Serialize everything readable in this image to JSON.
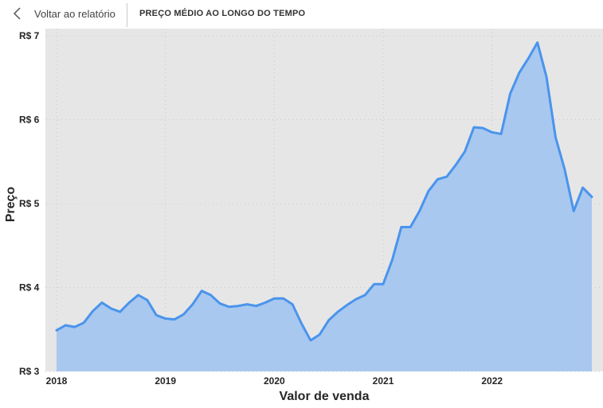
{
  "header": {
    "back_label": "Voltar ao relatório",
    "title": "PREÇO MÉDIO AO LONGO DO TEMPO"
  },
  "colors": {
    "plot_background": "#e6e6e6",
    "line": "#4a94ec",
    "area": "#a8c8f0",
    "grid": "#c9c9c9"
  },
  "chart_data": {
    "type": "area",
    "xlabel": "Valor de venda",
    "ylabel": "Preço",
    "ylim": [
      3,
      7
    ],
    "xlim": [
      "2018-01",
      "2022-12"
    ],
    "y_ticks": [
      {
        "value": 3,
        "label": "R$ 3"
      },
      {
        "value": 4,
        "label": "R$ 4"
      },
      {
        "value": 5,
        "label": "R$ 5"
      },
      {
        "value": 6,
        "label": "R$ 6"
      },
      {
        "value": 7,
        "label": "R$ 7"
      }
    ],
    "x_ticks": [
      {
        "value": "2018-01",
        "label": "2018"
      },
      {
        "value": "2019-01",
        "label": "2019"
      },
      {
        "value": "2020-01",
        "label": "2020"
      },
      {
        "value": "2021-01",
        "label": "2021"
      },
      {
        "value": "2022-01",
        "label": "2022"
      }
    ],
    "grid": true,
    "series": [
      {
        "x": [
          "2018-01",
          "2018-02",
          "2018-03",
          "2018-04",
          "2018-05",
          "2018-06",
          "2018-07",
          "2018-08",
          "2018-09",
          "2018-10",
          "2018-11",
          "2018-12",
          "2019-01",
          "2019-02",
          "2019-03",
          "2019-04",
          "2019-05",
          "2019-06",
          "2019-07",
          "2019-08",
          "2019-09",
          "2019-10",
          "2019-11",
          "2019-12",
          "2020-01",
          "2020-02",
          "2020-03",
          "2020-04",
          "2020-05",
          "2020-06",
          "2020-07",
          "2020-08",
          "2020-09",
          "2020-10",
          "2020-11",
          "2020-12",
          "2021-01",
          "2021-02",
          "2021-03",
          "2021-04",
          "2021-05",
          "2021-06",
          "2021-07",
          "2021-08",
          "2021-09",
          "2021-10",
          "2021-11",
          "2021-12",
          "2022-01",
          "2022-02",
          "2022-03",
          "2022-04",
          "2022-05",
          "2022-06",
          "2022-07",
          "2022-08",
          "2022-09",
          "2022-10",
          "2022-11",
          "2022-12"
        ],
        "values": [
          3.49,
          3.55,
          3.53,
          3.58,
          3.72,
          3.82,
          3.75,
          3.71,
          3.82,
          3.91,
          3.85,
          3.67,
          3.63,
          3.62,
          3.68,
          3.8,
          3.96,
          3.91,
          3.81,
          3.77,
          3.78,
          3.8,
          3.78,
          3.82,
          3.87,
          3.87,
          3.8,
          3.57,
          3.37,
          3.44,
          3.61,
          3.71,
          3.79,
          3.86,
          3.91,
          4.04,
          4.04,
          4.33,
          4.72,
          4.72,
          4.91,
          5.15,
          5.29,
          5.32,
          5.46,
          5.62,
          5.91,
          5.9,
          5.85,
          5.83,
          6.31,
          6.56,
          6.73,
          6.92,
          6.51,
          5.79,
          5.41,
          4.91,
          5.19,
          5.08
        ]
      }
    ]
  }
}
